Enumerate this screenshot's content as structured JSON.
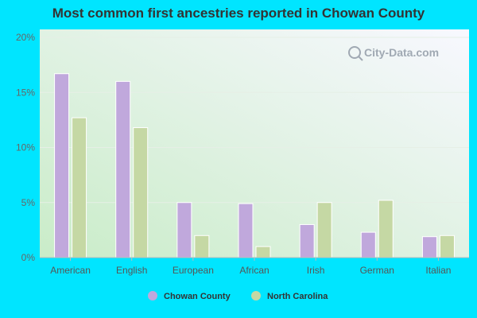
{
  "chart_data": {
    "type": "bar",
    "title": "Most common first ancestries reported in Chowan County",
    "categories": [
      "American",
      "English",
      "European",
      "African",
      "Irish",
      "German",
      "Italian"
    ],
    "series": [
      {
        "name": "Chowan County",
        "color": "#c0a8dc",
        "values": [
          16.7,
          16.0,
          5.0,
          4.9,
          3.0,
          2.3,
          1.9
        ]
      },
      {
        "name": "North Carolina",
        "color": "#c5d8a4",
        "values": [
          12.7,
          11.8,
          2.0,
          1.0,
          5.0,
          5.2,
          2.0
        ]
      }
    ],
    "ylim": [
      0,
      20
    ],
    "yticks": [
      "0%",
      "5%",
      "10%",
      "15%",
      "20%"
    ],
    "grid": true,
    "legend": "bottom"
  },
  "watermark": "City-Data.com",
  "colors": {
    "page_background": "#00e5ff"
  }
}
